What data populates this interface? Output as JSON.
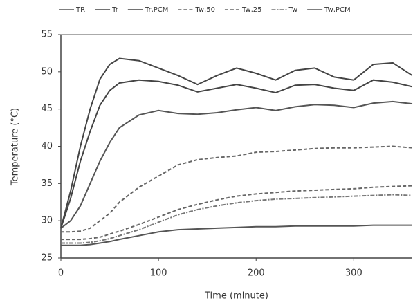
{
  "chart_data": {
    "type": "line",
    "x_label": "Time (minute)",
    "y_label": "Temperature (°C)",
    "x": [
      0,
      10,
      20,
      30,
      40,
      50,
      60,
      80,
      100,
      120,
      140,
      160,
      180,
      200,
      220,
      240,
      260,
      280,
      300,
      320,
      340,
      360
    ],
    "series": [
      {
        "name": "TR",
        "color": "#555555",
        "dash": "none",
        "values": [
          29,
          30,
          32,
          35,
          38,
          40.5,
          42.5,
          44.2,
          44.8,
          44.4,
          44.3,
          44.5,
          44.9,
          45.2,
          44.8,
          45.3,
          45.6,
          45.5,
          45.2,
          45.8,
          46.0,
          45.7
        ]
      },
      {
        "name": "Tr",
        "color": "#444444",
        "dash": "none",
        "values": [
          29,
          34,
          40,
          45,
          49,
          51,
          51.8,
          51.5,
          50.5,
          49.5,
          48.3,
          49.5,
          50.5,
          49.8,
          48.9,
          50.2,
          50.5,
          49.3,
          48.9,
          51.0,
          51.2,
          49.5
        ]
      },
      {
        "name": "Tr,PCM",
        "color": "#444444",
        "dash": "none",
        "values": [
          29,
          33,
          38,
          42,
          45.5,
          47.5,
          48.5,
          48.9,
          48.7,
          48.2,
          47.3,
          47.8,
          48.3,
          47.8,
          47.2,
          48.2,
          48.3,
          47.8,
          47.5,
          48.9,
          48.6,
          48.0
        ]
      },
      {
        "name": "Tw,50",
        "color": "#666666",
        "dash": "5 3",
        "values": [
          28.5,
          28.5,
          28.6,
          29,
          30,
          31,
          32.5,
          34.5,
          36,
          37.5,
          38.2,
          38.5,
          38.7,
          39.2,
          39.3,
          39.5,
          39.7,
          39.8,
          39.8,
          39.9,
          40,
          39.8
        ]
      },
      {
        "name": "Tw,25",
        "color": "#666666",
        "dash": "5 3",
        "values": [
          27.5,
          27.5,
          27.5,
          27.6,
          27.8,
          28.2,
          28.6,
          29.5,
          30.5,
          31.5,
          32.2,
          32.8,
          33.3,
          33.6,
          33.8,
          34,
          34.1,
          34.2,
          34.3,
          34.5,
          34.6,
          34.7
        ]
      },
      {
        "name": "Tw",
        "color": "#777777",
        "dash": "6 2 2 2",
        "values": [
          27,
          27,
          27,
          27.1,
          27.3,
          27.6,
          28,
          28.8,
          29.8,
          30.8,
          31.5,
          32,
          32.4,
          32.7,
          32.9,
          33,
          33.1,
          33.2,
          33.3,
          33.4,
          33.5,
          33.4
        ]
      },
      {
        "name": "Tw,PCM",
        "color": "#555555",
        "dash": "none",
        "values": [
          26.7,
          26.7,
          26.7,
          26.8,
          27,
          27.2,
          27.5,
          28,
          28.5,
          28.8,
          28.9,
          29,
          29.1,
          29.2,
          29.2,
          29.3,
          29.3,
          29.3,
          29.3,
          29.4,
          29.4,
          29.4
        ]
      }
    ],
    "xlim": [
      0,
      360
    ],
    "xticks": [
      0,
      100,
      200,
      300
    ],
    "ylim": [
      25,
      55
    ],
    "yticks": [
      25,
      30,
      35,
      40,
      45,
      50,
      55
    ],
    "grid": false
  }
}
